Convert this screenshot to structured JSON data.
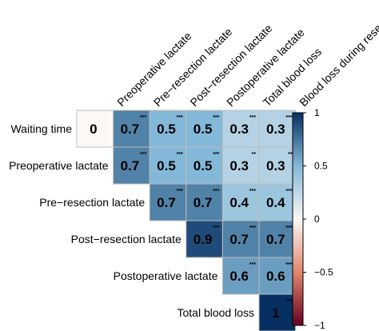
{
  "chart_data": {
    "type": "heatmap",
    "title": "",
    "row_labels": [
      "Waiting time",
      "Preoperative lactate",
      "Pre−resection lactate",
      "Post−resection lactate",
      "Postoperative lactate",
      "Total blood loss"
    ],
    "column_labels": [
      "Preoperative lactate",
      "Pre−resection lactate",
      "Post−resection lactate",
      "Postoperative lactate",
      "Total blood loss",
      "Blood loss during resection"
    ],
    "cells": [
      {
        "row": 0,
        "col": 0,
        "value": 0,
        "label": "0",
        "sig": ""
      },
      {
        "row": 0,
        "col": 1,
        "value": 0.7,
        "label": "0.7",
        "sig": "***"
      },
      {
        "row": 0,
        "col": 2,
        "value": 0.5,
        "label": "0.5",
        "sig": "***"
      },
      {
        "row": 0,
        "col": 3,
        "value": 0.5,
        "label": "0.5",
        "sig": "***"
      },
      {
        "row": 0,
        "col": 4,
        "value": 0.3,
        "label": "0.3",
        "sig": "***"
      },
      {
        "row": 0,
        "col": 5,
        "value": 0.3,
        "label": "0.3",
        "sig": "***"
      },
      {
        "row": 1,
        "col": 1,
        "value": 0.7,
        "label": "0.7",
        "sig": "***"
      },
      {
        "row": 1,
        "col": 2,
        "value": 0.5,
        "label": "0.5",
        "sig": "***"
      },
      {
        "row": 1,
        "col": 3,
        "value": 0.5,
        "label": "0.5",
        "sig": "***"
      },
      {
        "row": 1,
        "col": 4,
        "value": 0.3,
        "label": "0.3",
        "sig": "**"
      },
      {
        "row": 1,
        "col": 5,
        "value": 0.3,
        "label": "0.3",
        "sig": "**"
      },
      {
        "row": 2,
        "col": 2,
        "value": 0.7,
        "label": "0.7",
        "sig": "***"
      },
      {
        "row": 2,
        "col": 3,
        "value": 0.7,
        "label": "0.7",
        "sig": "***"
      },
      {
        "row": 2,
        "col": 4,
        "value": 0.4,
        "label": "0.4",
        "sig": "***"
      },
      {
        "row": 2,
        "col": 5,
        "value": 0.4,
        "label": "0.4",
        "sig": "***"
      },
      {
        "row": 3,
        "col": 3,
        "value": 0.9,
        "label": "0.9",
        "sig": "***"
      },
      {
        "row": 3,
        "col": 4,
        "value": 0.7,
        "label": "0.7",
        "sig": "***"
      },
      {
        "row": 3,
        "col": 5,
        "value": 0.7,
        "label": "0.7",
        "sig": "***"
      },
      {
        "row": 4,
        "col": 4,
        "value": 0.6,
        "label": "0.6",
        "sig": "***"
      },
      {
        "row": 4,
        "col": 5,
        "value": 0.6,
        "label": "0.6",
        "sig": "***"
      },
      {
        "row": 5,
        "col": 5,
        "value": 1,
        "label": "1",
        "sig": "***"
      }
    ],
    "colorbar": {
      "range": [
        -1,
        1
      ],
      "ticks": [
        1,
        0.5,
        0,
        -0.5,
        -1
      ],
      "tick_labels": [
        "1",
        "0.5",
        "0",
        "−0.5",
        "−1"
      ],
      "colors": {
        "-1": "#67001f",
        "-0.5": "#e0876c",
        "0": "#fbf8f5",
        "0.5": "#84b8d8",
        "1": "#053061"
      }
    },
    "grid_line_color": "#bdbdbd",
    "legend_position": "right"
  }
}
